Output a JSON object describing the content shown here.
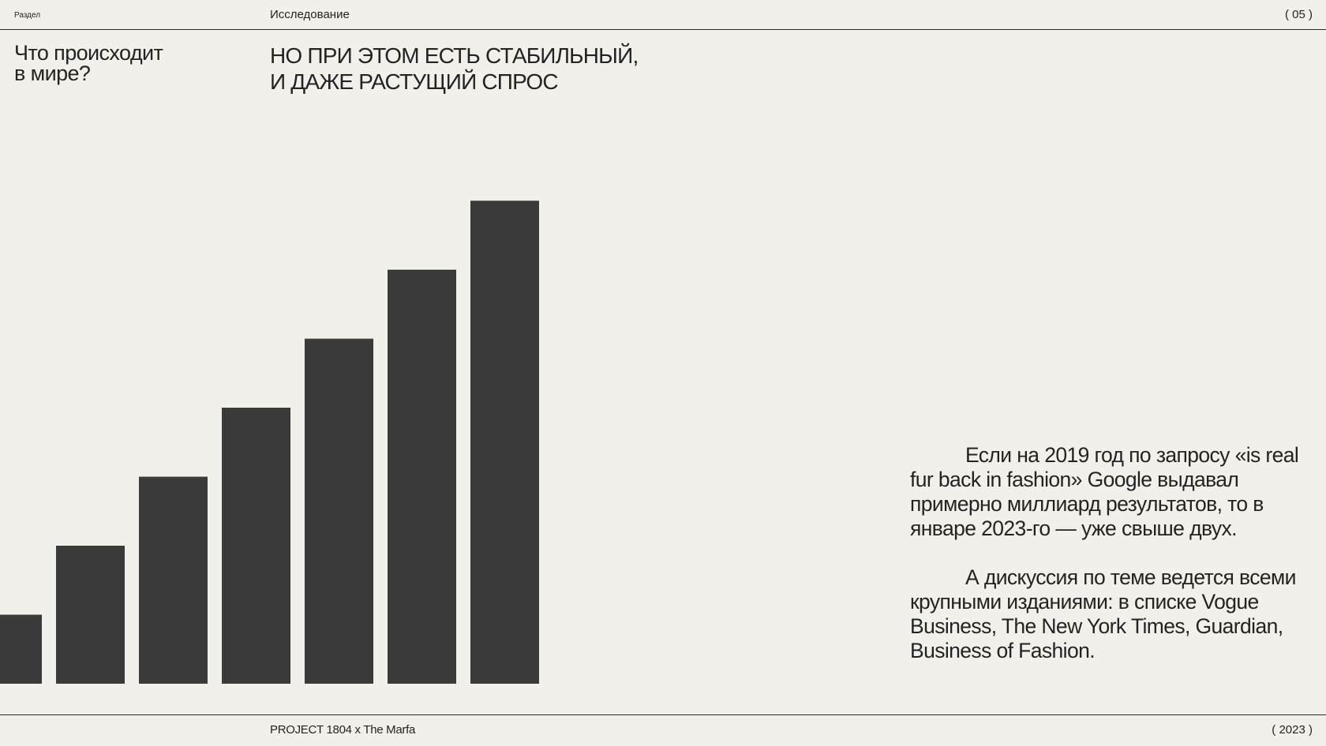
{
  "header": {
    "section_label": "Раздел",
    "section_name": "Исследование",
    "page_number": "( 05 )"
  },
  "section_question": [
    "Что происходит",
    "в мире?"
  ],
  "headline": [
    "НО ПРИ ЭТОМ ЕСТЬ СТАБИЛЬНЫЙ,",
    "И ДАЖЕ РАСТУЩИЙ СПРОС"
  ],
  "paragraphs": [
    "Если на 2019 год по запросу «is real fur back in fashion» Google выдавал примерно миллиард результатов, то в январе 2023-го — уже свыше двух.",
    "А дискуссия по теме ведется всеми крупными изданиями: в списке Vogue Business, The New York Times, Guardian, Business of Fashion."
  ],
  "footer": {
    "project": "PROJECT 1804 x The Marfa",
    "year": "( 2023 )"
  },
  "chart_data": {
    "type": "bar",
    "values": [
      1,
      2,
      3,
      4,
      5,
      6,
      7
    ],
    "bar_color": "#3a3a3a"
  }
}
